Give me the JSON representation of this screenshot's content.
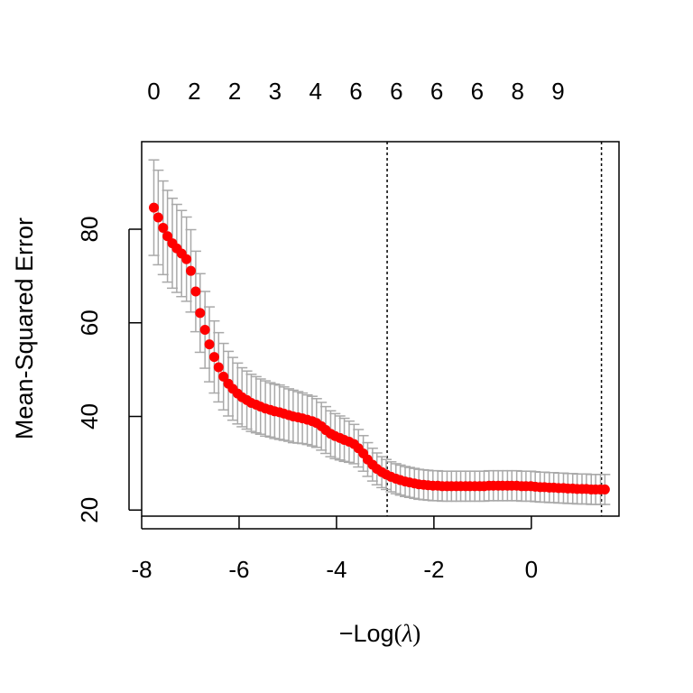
{
  "chart_data": {
    "type": "scatter",
    "xlabel_prefix": "−Log",
    "xlabel_symbol": "λ",
    "ylabel": "Mean-Squared Error",
    "xlim": [
      -8.0,
      1.8
    ],
    "ylim": [
      18.7,
      98.7
    ],
    "x_ticks": [
      -8,
      -6,
      -4,
      -2,
      0
    ],
    "x_tick_labels": [
      "-8",
      "-6",
      "-4",
      "-2",
      "0"
    ],
    "y_ticks": [
      20,
      40,
      60,
      80
    ],
    "y_tick_labels": [
      "20",
      "40",
      "60",
      "80"
    ],
    "top_axis": [
      {
        "x": -7.75,
        "label": "0"
      },
      {
        "x": -6.92,
        "label": "2"
      },
      {
        "x": -6.09,
        "label": "2"
      },
      {
        "x": -5.26,
        "label": "3"
      },
      {
        "x": -4.43,
        "label": "4"
      },
      {
        "x": -3.6,
        "label": "6"
      },
      {
        "x": -2.77,
        "label": "6"
      },
      {
        "x": -1.94,
        "label": "6"
      },
      {
        "x": -1.11,
        "label": "6"
      },
      {
        "x": -0.28,
        "label": "8"
      },
      {
        "x": 0.55,
        "label": "9"
      }
    ],
    "vlines": [
      -2.96,
      1.44
    ],
    "point_color": "#ff0000",
    "errorbar_color": "#a9a9a9",
    "series": [
      {
        "x": [
          -7.75,
          -7.66,
          -7.56,
          -7.47,
          -7.37,
          -7.28,
          -7.18,
          -7.08,
          -6.99,
          -6.89,
          -6.8,
          -6.7,
          -6.61,
          -6.51,
          -6.42,
          -6.32,
          -6.22,
          -6.13,
          -6.03,
          -5.94,
          -5.84,
          -5.75,
          -5.65,
          -5.56,
          -5.46,
          -5.36,
          -5.27,
          -5.17,
          -5.08,
          -4.98,
          -4.89,
          -4.79,
          -4.7,
          -4.6,
          -4.5,
          -4.41,
          -4.31,
          -4.22,
          -4.12,
          -4.03,
          -3.93,
          -3.84,
          -3.74,
          -3.64,
          -3.55,
          -3.45,
          -3.36,
          -3.26,
          -3.17,
          -3.07,
          -2.98,
          -2.88,
          -2.78,
          -2.69,
          -2.59,
          -2.5,
          -2.4,
          -2.31,
          -2.21,
          -2.12,
          -2.02,
          -1.92,
          -1.83,
          -1.73,
          -1.64,
          -1.54,
          -1.45,
          -1.35,
          -1.26,
          -1.16,
          -1.06,
          -0.97,
          -0.87,
          -0.78,
          -0.68,
          -0.59,
          -0.49,
          -0.4,
          -0.3,
          -0.2,
          -0.11,
          -0.01,
          0.08,
          0.18,
          0.27,
          0.37,
          0.46,
          0.56,
          0.66,
          0.75,
          0.85,
          0.94,
          1.04,
          1.13,
          1.23,
          1.32,
          1.42,
          1.51
        ],
        "y": [
          84.6,
          82.5,
          80.3,
          78.5,
          77.0,
          75.9,
          74.8,
          73.6,
          71.1,
          66.7,
          62.1,
          58.5,
          55.4,
          52.7,
          50.5,
          48.5,
          47.0,
          45.9,
          44.9,
          44.1,
          43.5,
          42.9,
          42.5,
          42.1,
          41.7,
          41.4,
          41.1,
          40.9,
          40.6,
          40.3,
          40.0,
          39.8,
          39.6,
          39.3,
          39.0,
          38.6,
          37.9,
          37.1,
          36.3,
          35.8,
          35.4,
          35.0,
          34.6,
          34.1,
          33.2,
          32.1,
          30.8,
          29.7,
          28.8,
          28.1,
          27.6,
          27.1,
          26.7,
          26.4,
          26.1,
          25.9,
          25.7,
          25.5,
          25.4,
          25.3,
          25.2,
          25.2,
          25.1,
          25.1,
          25.1,
          25.1,
          25.1,
          25.1,
          25.1,
          25.1,
          25.1,
          25.1,
          25.2,
          25.2,
          25.2,
          25.2,
          25.2,
          25.2,
          25.2,
          25.1,
          25.1,
          25.1,
          25.0,
          24.9,
          24.9,
          24.8,
          24.8,
          24.7,
          24.7,
          24.6,
          24.6,
          24.5,
          24.5,
          24.5,
          24.4,
          24.4,
          24.4,
          24.4
        ],
        "se": [
          10.2,
          10.1,
          10.0,
          9.8,
          9.6,
          9.4,
          9.2,
          9.0,
          8.8,
          8.6,
          8.4,
          8.2,
          8.0,
          7.7,
          7.4,
          7.1,
          6.9,
          6.7,
          6.5,
          6.3,
          6.2,
          6.1,
          6.0,
          5.9,
          5.9,
          5.8,
          5.8,
          5.8,
          5.7,
          5.6,
          5.6,
          5.5,
          5.4,
          5.3,
          5.3,
          5.2,
          5.1,
          5.0,
          4.9,
          4.8,
          4.7,
          4.6,
          4.4,
          4.2,
          4.0,
          3.8,
          3.6,
          3.5,
          3.4,
          3.3,
          3.2,
          3.2,
          3.2,
          3.2,
          3.2,
          3.2,
          3.2,
          3.2,
          3.2,
          3.2,
          3.2,
          3.2,
          3.2,
          3.2,
          3.2,
          3.2,
          3.2,
          3.2,
          3.2,
          3.2,
          3.2,
          3.2,
          3.2,
          3.2,
          3.2,
          3.2,
          3.2,
          3.2,
          3.2,
          3.2,
          3.2,
          3.2,
          3.2,
          3.2,
          3.2,
          3.2,
          3.2,
          3.2,
          3.2,
          3.2,
          3.2,
          3.2,
          3.2,
          3.2,
          3.2,
          3.2,
          3.2,
          3.2
        ]
      }
    ]
  }
}
